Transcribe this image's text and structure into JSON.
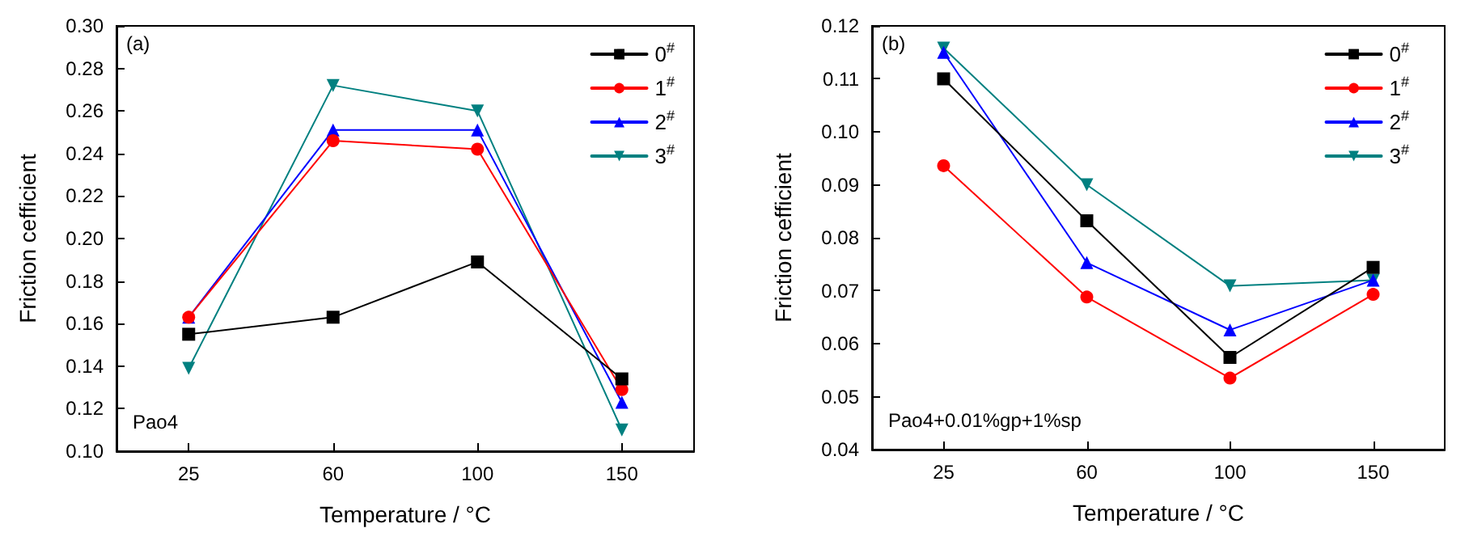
{
  "chart_data": [
    {
      "type": "line",
      "xlabel": "Temperature / °C",
      "ylabel": "Friction cefficient",
      "annotations": [
        "(a)",
        "Pao4"
      ],
      "categories": [
        "25",
        "60",
        "100",
        "150"
      ],
      "series": [
        {
          "name": "0$^{#}$",
          "color": "#000000",
          "marker": "square",
          "values": [
            0.155,
            0.163,
            0.189,
            0.134
          ]
        },
        {
          "name": "1$^{#}$",
          "color": "#ff0000",
          "marker": "circle",
          "values": [
            0.163,
            0.246,
            0.242,
            0.129
          ]
        },
        {
          "name": "2$^{#}$",
          "color": "#0000ff",
          "marker": "triangle",
          "values": [
            0.163,
            0.251,
            0.251,
            0.123
          ]
        },
        {
          "name": "3$^{#}$",
          "color": "#008080",
          "marker": "triangle-down",
          "values": [
            0.139,
            0.272,
            0.26,
            0.11
          ]
        }
      ],
      "ylim": [
        0.1,
        0.3
      ],
      "yticks": [
        {
          "value": 0.1,
          "label": "0.10"
        },
        {
          "value": 0.12,
          "label": "0.12"
        },
        {
          "value": 0.14,
          "label": "0.14"
        },
        {
          "value": 0.16,
          "label": "0.16"
        },
        {
          "value": 0.18,
          "label": "0.18"
        },
        {
          "value": 0.2,
          "label": "0.20"
        },
        {
          "value": 0.22,
          "label": "0.22"
        },
        {
          "value": 0.24,
          "label": "0.24"
        },
        {
          "value": 0.26,
          "label": "0.26"
        },
        {
          "value": 0.28,
          "label": "0.28"
        },
        {
          "value": 0.3,
          "label": "0.30"
        }
      ],
      "legend": "top right",
      "grid": false,
      "line_style": "solid"
    },
    {
      "type": "line",
      "xlabel": "Temperature / °C",
      "ylabel": "Friction cefficient",
      "annotations": [
        "(b)",
        "Pao4+0.01%gp+1%sp"
      ],
      "categories": [
        "25",
        "60",
        "100",
        "150"
      ],
      "series": [
        {
          "name": "0$^{#}$",
          "color": "#000000",
          "marker": "square",
          "values": [
            0.11,
            0.0832,
            0.0574,
            0.0744
          ]
        },
        {
          "name": "1$^{#}$",
          "color": "#ff0000",
          "marker": "circle",
          "values": [
            0.0936,
            0.0688,
            0.0535,
            0.0693
          ]
        },
        {
          "name": "2$^{#}$",
          "color": "#0000ff",
          "marker": "triangle",
          "values": [
            0.115,
            0.0753,
            0.0626,
            0.072
          ]
        },
        {
          "name": "3$^{#}$",
          "color": "#008080",
          "marker": "triangle-down",
          "values": [
            0.1158,
            0.09,
            0.0709,
            0.072
          ]
        }
      ],
      "ylim": [
        0.04,
        0.12
      ],
      "yticks": [
        {
          "value": 0.04,
          "label": "0.04"
        },
        {
          "value": 0.05,
          "label": "0.05"
        },
        {
          "value": 0.06,
          "label": "0.06"
        },
        {
          "value": 0.07,
          "label": "0.07"
        },
        {
          "value": 0.08,
          "label": "0.08"
        },
        {
          "value": 0.09,
          "label": "0.09"
        },
        {
          "value": 0.1,
          "label": "0.10"
        },
        {
          "value": 0.11,
          "label": "0.11"
        },
        {
          "value": 0.12,
          "label": "0.12"
        }
      ],
      "legend": "top right",
      "grid": false,
      "line_style": "solid"
    }
  ]
}
